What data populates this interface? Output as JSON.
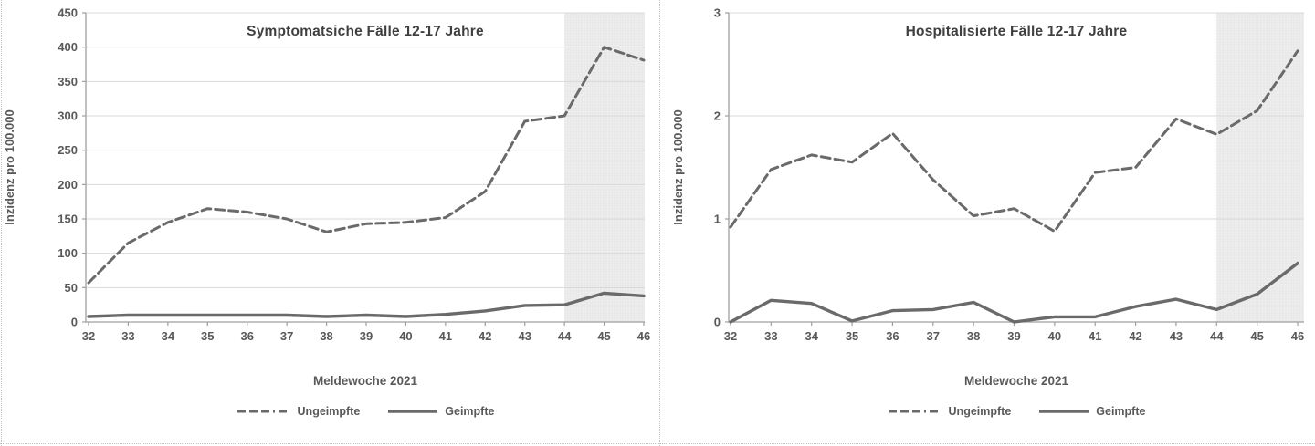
{
  "figure": {
    "background": "#ffffff"
  },
  "colors": {
    "line": "#6a6a6a",
    "grid": "#d9d9d9",
    "axis": "#9f9f9f",
    "shade_fill": "#ededed",
    "shade_dot": "#dddddd",
    "title_text": "#3f3f3f",
    "label_text": "#595959"
  },
  "chart_data": [
    {
      "type": "line",
      "title": "Symptomatsiche Fälle 12-17 Jahre",
      "xlabel": "Meldewoche 2021",
      "ylabel": "Inzidenz pro 100.000",
      "x": [
        32,
        33,
        34,
        35,
        36,
        37,
        38,
        39,
        40,
        41,
        42,
        43,
        44,
        45,
        46
      ],
      "ylim": [
        0,
        450
      ],
      "yticks": [
        0,
        50,
        100,
        150,
        200,
        250,
        300,
        350,
        400,
        450
      ],
      "grid": true,
      "legend_position": "bottom",
      "shaded_region": {
        "x_from": 44,
        "x_to": 46
      },
      "series": [
        {
          "name": "Ungeimpfte",
          "style": "dashed",
          "values": [
            57,
            115,
            145,
            165,
            160,
            150,
            131,
            143,
            145,
            152,
            190,
            292,
            300,
            400,
            381
          ]
        },
        {
          "name": "Geimpfte",
          "style": "solid",
          "values": [
            8,
            10,
            10,
            10,
            10,
            10,
            8,
            10,
            8,
            11,
            16,
            24,
            25,
            42,
            38
          ]
        }
      ]
    },
    {
      "type": "line",
      "title": "Hospitalisierte Fälle 12-17 Jahre",
      "xlabel": "Meldewoche 2021",
      "ylabel": "Inzidenz pro 100.000",
      "x": [
        32,
        33,
        34,
        35,
        36,
        37,
        38,
        39,
        40,
        41,
        42,
        43,
        44,
        45,
        46
      ],
      "ylim": [
        0,
        3
      ],
      "yticks": [
        0,
        1,
        2,
        3
      ],
      "grid": true,
      "legend_position": "bottom",
      "shaded_region": {
        "x_from": 44,
        "x_to": 46
      },
      "series": [
        {
          "name": "Ungeimpfte",
          "style": "dashed",
          "values": [
            0.92,
            1.48,
            1.62,
            1.55,
            1.83,
            1.38,
            1.03,
            1.1,
            0.88,
            1.45,
            1.5,
            1.97,
            1.82,
            2.05,
            2.63
          ]
        },
        {
          "name": "Geimpfte",
          "style": "solid",
          "values": [
            0.0,
            0.21,
            0.18,
            0.01,
            0.11,
            0.12,
            0.19,
            0.0,
            0.05,
            0.05,
            0.15,
            0.22,
            0.12,
            0.27,
            0.57
          ]
        }
      ]
    }
  ]
}
